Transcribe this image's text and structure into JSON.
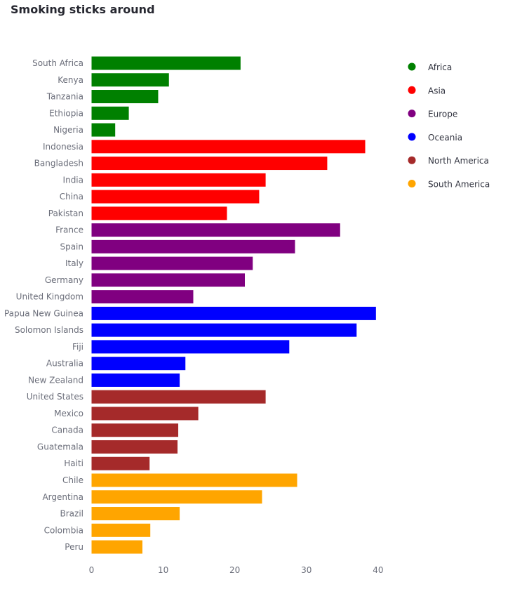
{
  "chart_data": {
    "type": "bar",
    "orientation": "horizontal",
    "title": "Smoking sticks around",
    "xlabel": "",
    "ylabel": "",
    "xlim": [
      0,
      43
    ],
    "x_ticks": [
      0,
      10,
      20,
      30,
      40
    ],
    "grid": false,
    "legend_position": "right",
    "categories": [
      "South Africa",
      "Kenya",
      "Tanzania",
      "Ethiopia",
      "Nigeria",
      "Indonesia",
      "Bangladesh",
      "India",
      "China",
      "Pakistan",
      "France",
      "Spain",
      "Italy",
      "Germany",
      "United Kingdom",
      "Papua New Guinea",
      "Solomon Islands",
      "Fiji",
      "Australia",
      "New Zealand",
      "United States",
      "Mexico",
      "Canada",
      "Guatemala",
      "Haiti",
      "Chile",
      "Argentina",
      "Brazil",
      "Colombia",
      "Peru"
    ],
    "values": [
      20.8,
      10.8,
      9.3,
      5.2,
      3.3,
      38.2,
      32.9,
      24.3,
      23.4,
      18.9,
      34.7,
      28.4,
      22.5,
      21.4,
      14.2,
      39.7,
      37.0,
      27.6,
      13.1,
      12.3,
      24.3,
      14.9,
      12.1,
      12.0,
      8.1,
      28.7,
      23.8,
      12.3,
      8.2,
      7.1
    ],
    "groups": [
      "Africa",
      "Africa",
      "Africa",
      "Africa",
      "Africa",
      "Asia",
      "Asia",
      "Asia",
      "Asia",
      "Asia",
      "Europe",
      "Europe",
      "Europe",
      "Europe",
      "Europe",
      "Oceania",
      "Oceania",
      "Oceania",
      "Oceania",
      "Oceania",
      "North America",
      "North America",
      "North America",
      "North America",
      "North America",
      "South America",
      "South America",
      "South America",
      "South America",
      "South America"
    ],
    "legend": [
      {
        "name": "Africa",
        "color": "#008000"
      },
      {
        "name": "Asia",
        "color": "#ff0000"
      },
      {
        "name": "Europe",
        "color": "#800080"
      },
      {
        "name": "Oceania",
        "color": "#0000ff"
      },
      {
        "name": "North America",
        "color": "#a52a2a"
      },
      {
        "name": "South America",
        "color": "#ffa500"
      }
    ]
  }
}
